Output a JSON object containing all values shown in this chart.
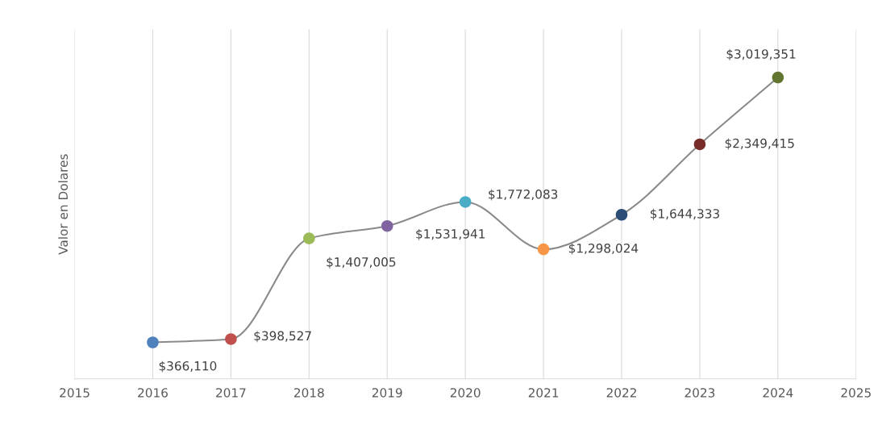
{
  "chart_data": {
    "type": "line",
    "ylabel": "Valor en Dolares",
    "x": [
      2016,
      2017,
      2018,
      2019,
      2020,
      2021,
      2022,
      2023,
      2024
    ],
    "series": [
      {
        "color": "#8a8a8a",
        "colors": [
          "#4f81bd",
          "#c0504d",
          "#9bbb59",
          "#8064a2",
          "#4bacc6",
          "#f79646",
          "#2c4d75",
          "#772c2a",
          "#5f7530"
        ],
        "values": [
          366110,
          398527,
          1407005,
          1531941,
          1772083,
          1298024,
          1644333,
          2349415,
          3019351
        ],
        "value_labels": [
          "$366,110",
          "$398,527",
          "$1,407,005",
          "$1,531,941",
          "$1,772,083",
          "$1,298,024",
          "$1,644,333",
          "$2,349,415",
          "$3,019,351"
        ]
      }
    ],
    "xlim": [
      2015,
      2025
    ],
    "xticks": [
      2015,
      2016,
      2017,
      2018,
      2019,
      2020,
      2021,
      2022,
      2023,
      2024,
      2025
    ],
    "ylim": [
      0,
      3500000
    ],
    "grid": "x",
    "marker": "circle",
    "legend": false
  }
}
